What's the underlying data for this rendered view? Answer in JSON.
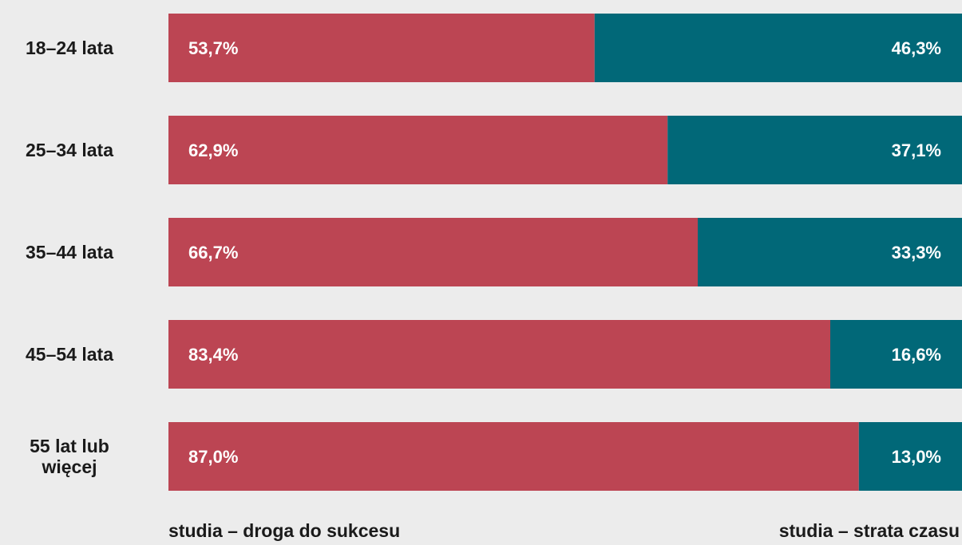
{
  "chart_data": {
    "type": "bar",
    "orientation": "horizontal",
    "stacked": "100%",
    "categories": [
      "18–24 lata",
      "25–34 lata",
      "35–44 lata",
      "45–54 lata",
      "55 lat lub więcej"
    ],
    "series": [
      {
        "name": "studia – droga do sukcesu",
        "color": "#bc4553",
        "values": [
          53.7,
          62.9,
          66.7,
          83.4,
          87.0
        ],
        "labels": [
          "53,7%",
          "62,9%",
          "66,7%",
          "83,4%",
          "87,0%"
        ]
      },
      {
        "name": "studia – strata czasu",
        "color": "#016878",
        "values": [
          46.3,
          37.1,
          33.3,
          16.6,
          13.0
        ],
        "labels": [
          "46,3%",
          "37,1%",
          "33,3%",
          "16,6%",
          "13,0%"
        ]
      }
    ],
    "xlim": [
      0,
      100
    ],
    "grid": false,
    "legend_position": "bottom"
  }
}
